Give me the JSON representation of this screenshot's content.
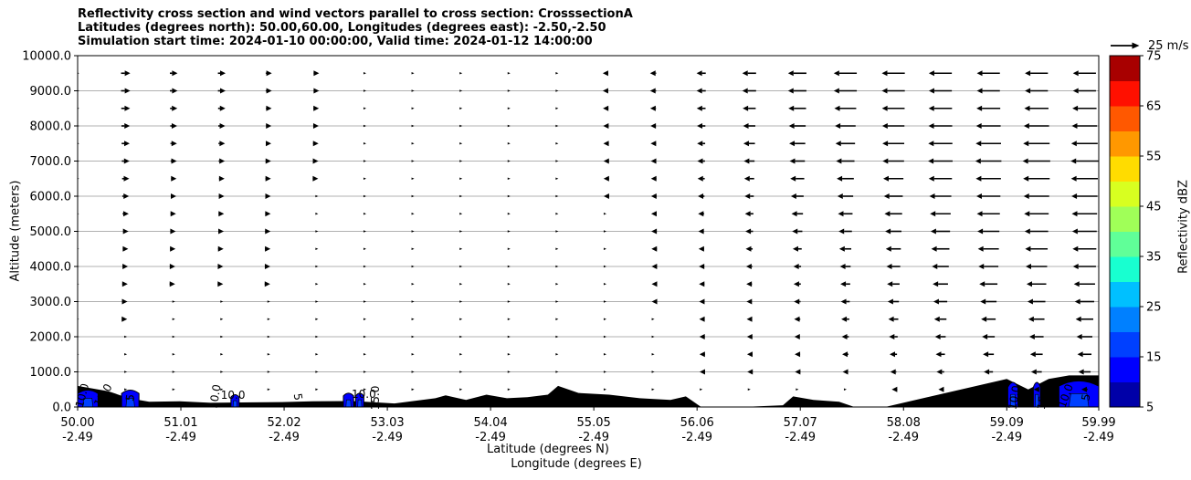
{
  "chart_data": {
    "type": "cross-section",
    "title_lines": [
      "Reflectivity cross section and wind vectors parallel to cross section: CrosssectionA",
      "Latitudes (degrees north): 50.00,60.00, Longitudes (degrees east): -2.50,-2.50",
      "Simulation start time: 2024-01-10 00:00:00, Valid time: 2024-01-12 14:00:00"
    ],
    "ylabel": "Altitude (meters)",
    "xlabel_lat": "Latitude (degrees N)",
    "xlabel_lon": "Longitude (degrees E)",
    "ylim": [
      0,
      10000
    ],
    "y_ticks": [
      "0.0",
      "1000.0",
      "2000.0",
      "3000.0",
      "4000.0",
      "5000.0",
      "6000.0",
      "7000.0",
      "8000.0",
      "9000.0",
      "10000.0"
    ],
    "x_range": [
      50.0,
      59.99
    ],
    "x_ticks_lat": [
      "50.00",
      "51.01",
      "52.02",
      "53.03",
      "54.04",
      "55.05",
      "56.06",
      "57.07",
      "58.08",
      "59.09",
      "59.99"
    ],
    "x_ticks_lon": [
      "-2.49",
      "-2.49",
      "-2.49",
      "-2.49",
      "-2.49",
      "-2.49",
      "-2.49",
      "-2.49",
      "-2.49",
      "-2.49",
      "-2.49"
    ],
    "grid": true,
    "wind_key": {
      "label": "25 m/s",
      "speed": 25
    },
    "colorbar": {
      "label": "Reflectivity dBZ",
      "min": 5,
      "max": 75,
      "step": 5,
      "tick_labels": [
        "5",
        "15",
        "25",
        "35",
        "45",
        "55",
        "65",
        "75"
      ],
      "colors": [
        "#0000a8",
        "#0000ff",
        "#0040ff",
        "#0080ff",
        "#00c0ff",
        "#18ffd0",
        "#60ff98",
        "#a0ff58",
        "#d8ff20",
        "#ffdc00",
        "#ff9800",
        "#ff5800",
        "#ff1000",
        "#a80000"
      ]
    },
    "terrain_profile": {
      "x": [
        50.0,
        50.3,
        50.5,
        50.7,
        51.0,
        51.3,
        51.6,
        52.0,
        52.3,
        52.7,
        53.1,
        53.5,
        53.6,
        53.8,
        54.0,
        54.2,
        54.4,
        54.6,
        54.7,
        54.9,
        55.2,
        55.5,
        55.8,
        55.95,
        56.1,
        56.5,
        56.9,
        57.0,
        57.2,
        57.45,
        57.6,
        57.9,
        59.09,
        59.3,
        59.5,
        59.7,
        59.99
      ],
      "y": [
        600,
        450,
        250,
        150,
        160,
        120,
        130,
        140,
        160,
        170,
        100,
        250,
        330,
        200,
        350,
        250,
        280,
        350,
        600,
        400,
        350,
        250,
        200,
        300,
        0,
        0,
        50,
        300,
        200,
        150,
        0,
        0,
        800,
        500,
        800,
        900,
        900
      ]
    },
    "contour_labels": [
      "10.0",
      "15.0",
      "5",
      "10.0",
      "10.0",
      "5",
      "10.0",
      "15.0",
      "5",
      "10.0",
      "15.0",
      "10.0",
      "5",
      "10.0",
      "5",
      "10.0",
      "5"
    ],
    "wind_u_profile": {
      "levels_m": [
        500,
        1000,
        1500,
        2000,
        2500,
        3000,
        3500,
        4000,
        4500,
        5000,
        5500,
        6000,
        6500,
        7000,
        7500,
        8000,
        8500,
        9000,
        9500
      ],
      "columns_lat": [
        50.0,
        50.47,
        50.94,
        51.41,
        51.87,
        52.34,
        52.81,
        53.28,
        53.75,
        54.22,
        54.69,
        55.16,
        55.63,
        56.1,
        56.57,
        57.04,
        57.51,
        57.98,
        58.44,
        58.91,
        59.38,
        59.85
      ],
      "note_free": true,
      "u_at_9000": [
        2,
        6,
        5,
        5,
        4,
        3,
        1,
        0.5,
        0.3,
        -0.5,
        -1.5,
        -3,
        -4,
        -6,
        -9,
        -12,
        -15,
        -15,
        -15,
        -15,
        -15,
        -15
      ],
      "u_at_7000": [
        2,
        5,
        4,
        4,
        3,
        2,
        1,
        0.5,
        0.3,
        -0.5,
        -1,
        -2,
        -3,
        -5,
        -7,
        -10,
        -12,
        -14,
        -16,
        -17,
        -18,
        -18
      ],
      "u_at_4000": [
        1,
        3,
        2,
        2,
        2,
        1,
        0.5,
        0.3,
        0.2,
        -0.3,
        -0.8,
        -1.5,
        -2,
        -3,
        -4,
        -5,
        -7,
        -9,
        -11,
        -13,
        -14,
        -15
      ],
      "u_at_1000": [
        0.5,
        1,
        1,
        1,
        1,
        0.5,
        0.3,
        0.2,
        0.2,
        -0.2,
        -0.5,
        -1,
        -1.5,
        -2,
        -2.5,
        -3,
        -3.5,
        -4,
        -5,
        -6,
        -7,
        -8
      ]
    }
  }
}
